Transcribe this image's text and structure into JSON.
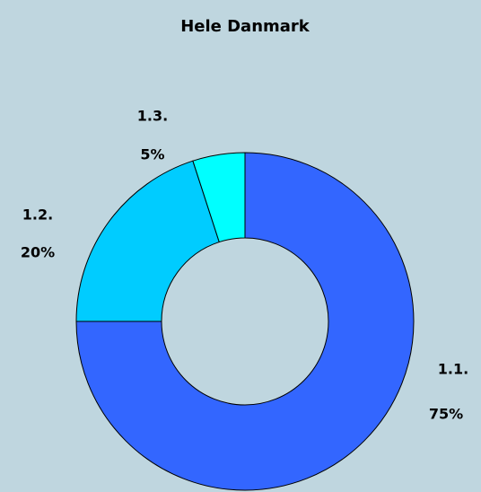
{
  "chart_data": {
    "type": "donut",
    "title": "Hele Danmark",
    "categories": [
      "1.1.",
      "1.2.",
      "1.3."
    ],
    "values": [
      75,
      20,
      5
    ],
    "value_labels": [
      "75%",
      "20%",
      "5%"
    ],
    "colors": [
      "#3366ff",
      "#00ccff",
      "#00ffff"
    ]
  }
}
